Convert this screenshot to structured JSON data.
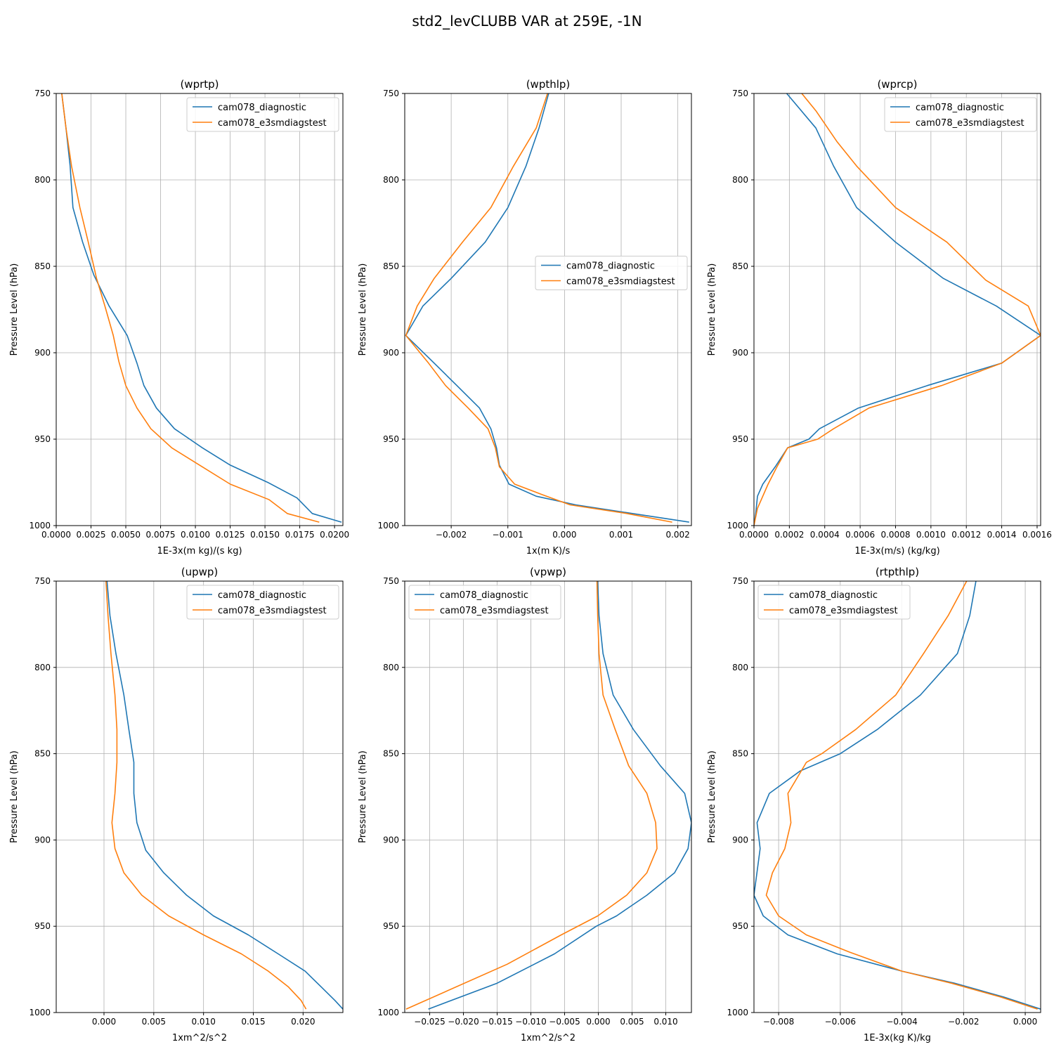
{
  "figure": {
    "title": "std2_levCLUBB VAR at 259E, -1N"
  },
  "colors": {
    "diagnostic": "#1f77b4",
    "e3smdiagstest": "#ff7f0e",
    "grid": "#b0b0b0"
  },
  "chart_data": [
    {
      "type": "line",
      "title": "(wprtp)",
      "xlabel": "1E-3x(m kg)/(s kg)",
      "ylabel": "Pressure Level (hPa)",
      "xlim": [
        0,
        0.0206
      ],
      "ylim": [
        1000,
        750
      ],
      "xticks": [
        0,
        0.0025,
        0.005,
        0.0075,
        0.01,
        0.0125,
        0.015,
        0.0175,
        0.02
      ],
      "xtick_labels": [
        "0.0000",
        "0.0025",
        "0.0050",
        "0.0075",
        "0.0100",
        "0.0125",
        "0.0150",
        "0.0175",
        "0.0200"
      ],
      "yticks": [
        750,
        800,
        850,
        900,
        950,
        1000
      ],
      "ytick_labels": [
        "750",
        "800",
        "850",
        "900",
        "950",
        "1000"
      ],
      "legend": "upper-right",
      "series": [
        {
          "name": "cam078_diagnostic",
          "color": "#1f77b4",
          "x": [
            0.0004,
            0.0007,
            0.001,
            0.0012,
            0.0019,
            0.0027,
            0.0038,
            0.0051,
            0.0058,
            0.0063,
            0.0072,
            0.0085,
            0.0105,
            0.0125,
            0.0152,
            0.0173,
            0.0184,
            0.0205
          ],
          "y": [
            750,
            770,
            792,
            816,
            836,
            855,
            873,
            890,
            906,
            919,
            932,
            944,
            955,
            965,
            975,
            984,
            993,
            998
          ]
        },
        {
          "name": "cam078_e3smdiagstest",
          "color": "#ff7f0e",
          "x": [
            0.0004,
            0.0007,
            0.0011,
            0.0017,
            0.0023,
            0.0029,
            0.0035,
            0.0041,
            0.0045,
            0.005,
            0.0058,
            0.0068,
            0.0083,
            0.0105,
            0.0125,
            0.0153,
            0.0166,
            0.0189
          ],
          "y": [
            750,
            770,
            792,
            816,
            836,
            857,
            873,
            890,
            905,
            919,
            932,
            944,
            955,
            966,
            976,
            985,
            993,
            998
          ]
        }
      ]
    },
    {
      "type": "line",
      "title": "(wpthlp)",
      "xlabel": "1x(m K)/s",
      "ylabel": "Pressure Level (hPa)",
      "xlim": [
        -0.00282,
        0.00224
      ],
      "ylim": [
        1000,
        750
      ],
      "xticks": [
        -0.002,
        -0.001,
        0,
        0.001,
        0.002
      ],
      "xtick_labels": [
        "−0.002",
        "−0.001",
        "0.000",
        "0.001",
        "0.002"
      ],
      "yticks": [
        750,
        800,
        850,
        900,
        950,
        1000
      ],
      "ytick_labels": [
        "750",
        "800",
        "850",
        "900",
        "950",
        "1000"
      ],
      "legend": "center-right",
      "series": [
        {
          "name": "cam078_diagnostic",
          "color": "#1f77b4",
          "x": [
            -0.00028,
            -0.00045,
            -0.00068,
            -0.001,
            -0.0014,
            -0.002,
            -0.0025,
            -0.0028,
            -0.0023,
            -0.0019,
            -0.0015,
            -0.0013,
            -0.0012,
            -0.00115,
            -0.00098,
            -0.0005,
            0.0002,
            0.0012,
            0.0022
          ],
          "y": [
            750,
            770,
            792,
            816,
            836,
            857,
            873,
            890,
            906,
            919,
            932,
            944,
            955,
            965,
            976,
            983,
            988,
            993,
            998
          ]
        },
        {
          "name": "cam078_e3smdiagstest",
          "color": "#ff7f0e",
          "x": [
            -0.0003,
            -0.0005,
            -0.0009,
            -0.0013,
            -0.0018,
            -0.0023,
            -0.0026,
            -0.0028,
            -0.0024,
            -0.0021,
            -0.0017,
            -0.00135,
            -0.00122,
            -0.00115,
            -0.00088,
            -0.0004,
            0.0001,
            0.0011,
            0.0019
          ],
          "y": [
            750,
            770,
            792,
            816,
            836,
            857,
            873,
            890,
            906,
            919,
            932,
            944,
            955,
            966,
            976,
            982,
            988,
            993,
            998
          ]
        }
      ]
    },
    {
      "type": "line",
      "title": "(wprcp)",
      "xlabel": "1E-3x(m/s) (kg/kg)",
      "ylabel": "Pressure Level (hPa)",
      "xlim": [
        0,
        0.00162
      ],
      "ylim": [
        1000,
        750
      ],
      "xticks": [
        0,
        0.0002,
        0.0004,
        0.0006,
        0.0008,
        0.001,
        0.0012,
        0.0014,
        0.0016
      ],
      "xtick_labels": [
        "0.0000",
        "0.0002",
        "0.0004",
        "0.0006",
        "0.0008",
        "0.0010",
        "0.0012",
        "0.0014",
        "0.0016"
      ],
      "yticks": [
        750,
        800,
        850,
        900,
        950,
        1000
      ],
      "ytick_labels": [
        "750",
        "800",
        "850",
        "900",
        "950",
        "1000"
      ],
      "legend": "upper-right",
      "series": [
        {
          "name": "cam078_diagnostic",
          "color": "#1f77b4",
          "x": [
            0.000185,
            0.00035,
            0.00045,
            0.00058,
            0.0008,
            0.00107,
            0.00137,
            0.00162,
            0.0014,
            0.00098,
            0.00059,
            0.00037,
            0.00031,
            0.00019,
            0.00012,
            5e-05,
            2e-05,
            1e-05,
            0
          ],
          "y": [
            750,
            770,
            792,
            816,
            836,
            857,
            873,
            890,
            906,
            919,
            932,
            944,
            950,
            955,
            966,
            976,
            983,
            993,
            1000
          ]
        },
        {
          "name": "cam078_e3smdiagstest",
          "color": "#ff7f0e",
          "x": [
            0.00027,
            0.00035,
            0.00047,
            0.00058,
            0.0008,
            0.00109,
            0.00131,
            0.00155,
            0.00162,
            0.0014,
            0.00106,
            0.00065,
            0.00045,
            0.00036,
            0.00019,
            0.00013,
            8e-05,
            2e-05,
            0
          ],
          "y": [
            750,
            760,
            778,
            792,
            816,
            836,
            858,
            873,
            890,
            906,
            919,
            932,
            944,
            950,
            955,
            966,
            976,
            990,
            1000
          ]
        }
      ]
    },
    {
      "type": "line",
      "title": "(upwp)",
      "xlabel": "1xm^2/s^2",
      "ylabel": "Pressure Level (hPa)",
      "xlim": [
        -0.0048,
        0.024
      ],
      "ylim": [
        1000,
        750
      ],
      "xticks": [
        0,
        0.005,
        0.01,
        0.015,
        0.02
      ],
      "xtick_labels": [
        "0.000",
        "0.005",
        "0.010",
        "0.015",
        "0.020"
      ],
      "yticks": [
        750,
        800,
        850,
        900,
        950,
        1000
      ],
      "ytick_labels": [
        "750",
        "800",
        "850",
        "900",
        "950",
        "1000"
      ],
      "legend": "upper-right",
      "series": [
        {
          "name": "cam078_diagnostic",
          "color": "#1f77b4",
          "x": [
            0.0003,
            0.0006,
            0.0012,
            0.002,
            0.0025,
            0.003,
            0.003,
            0.0033,
            0.0042,
            0.006,
            0.0083,
            0.011,
            0.0145,
            0.0175,
            0.0202,
            0.0218,
            0.0232,
            0.024
          ],
          "y": [
            750,
            770,
            792,
            816,
            836,
            855,
            873,
            890,
            906,
            919,
            932,
            944,
            955,
            966,
            976,
            985,
            993,
            998
          ]
        },
        {
          "name": "cam078_e3smdiagstest",
          "color": "#ff7f0e",
          "x": [
            0.0002,
            0.0004,
            0.0007,
            0.0011,
            0.0013,
            0.0013,
            0.0011,
            0.0008,
            0.0011,
            0.002,
            0.0038,
            0.0065,
            0.01,
            0.0138,
            0.0165,
            0.0185,
            0.0198,
            0.0203
          ],
          "y": [
            750,
            770,
            792,
            816,
            836,
            855,
            873,
            890,
            905,
            919,
            932,
            944,
            955,
            966,
            976,
            985,
            993,
            998
          ]
        }
      ]
    },
    {
      "type": "line",
      "title": "(vpwp)",
      "xlabel": "1xm^2/s^2",
      "ylabel": "Pressure Level (hPa)",
      "xlim": [
        -0.0287,
        0.0138
      ],
      "ylim": [
        1000,
        750
      ],
      "xticks": [
        -0.025,
        -0.02,
        -0.015,
        -0.01,
        -0.005,
        0,
        0.005,
        0.01
      ],
      "xtick_labels": [
        "−0.025",
        "−0.020",
        "−0.015",
        "−0.010",
        "−0.005",
        "0.000",
        "0.005",
        "0.010"
      ],
      "yticks": [
        750,
        800,
        850,
        900,
        950,
        1000
      ],
      "ytick_labels": [
        "750",
        "800",
        "850",
        "900",
        "950",
        "1000"
      ],
      "legend": "upper-left",
      "series": [
        {
          "name": "cam078_diagnostic",
          "color": "#1f77b4",
          "x": [
            -0.0001,
            0.0001,
            0.0007,
            0.0022,
            0.0052,
            0.0092,
            0.0128,
            0.0138,
            0.0133,
            0.0113,
            0.0072,
            0.0027,
            -0.0003,
            -0.0065,
            -0.015,
            -0.0252
          ],
          "y": [
            750,
            770,
            792,
            816,
            836,
            857,
            873,
            890,
            905,
            919,
            932,
            944,
            950,
            966,
            983,
            998
          ]
        },
        {
          "name": "cam078_e3smdiagstest",
          "color": "#ff7f0e",
          "x": [
            -0.0002,
            -0.0001,
            0.0001,
            0.0007,
            0.0025,
            0.0045,
            0.0072,
            0.0085,
            0.0087,
            0.0072,
            0.0042,
            -0.0001,
            -0.0055,
            -0.0135,
            -0.0285
          ],
          "y": [
            750,
            770,
            792,
            816,
            836,
            857,
            873,
            890,
            905,
            919,
            932,
            944,
            955,
            972,
            998
          ]
        }
      ]
    },
    {
      "type": "line",
      "title": "(rtpthlp)",
      "xlabel": "1E-3x(kg K)/kg",
      "ylabel": "Pressure Level (hPa)",
      "xlim": [
        -0.0088,
        0.0005
      ],
      "ylim": [
        1000,
        750
      ],
      "xticks": [
        -0.008,
        -0.006,
        -0.004,
        -0.002,
        0
      ],
      "xtick_labels": [
        "−0.008",
        "−0.006",
        "−0.004",
        "−0.002",
        "0.000"
      ],
      "yticks": [
        750,
        800,
        850,
        900,
        950,
        1000
      ],
      "ytick_labels": [
        "750",
        "800",
        "850",
        "900",
        "950",
        "1000"
      ],
      "legend": "upper-left",
      "series": [
        {
          "name": "cam078_diagnostic",
          "color": "#1f77b4",
          "x": [
            -0.0016,
            -0.0018,
            -0.0022,
            -0.0034,
            -0.0048,
            -0.006,
            -0.0073,
            -0.0083,
            -0.0087,
            -0.0086,
            -0.0088,
            -0.0085,
            -0.0077,
            -0.0061,
            -0.004,
            -0.0023,
            -0.0013,
            -0.0007,
            0.0005
          ],
          "y": [
            750,
            770,
            792,
            816,
            836,
            850,
            860,
            873,
            890,
            905,
            932,
            944,
            955,
            966,
            976,
            983,
            988,
            991,
            998
          ]
        },
        {
          "name": "cam078_e3smdiagstest",
          "color": "#ff7f0e",
          "x": [
            -0.0019,
            -0.0022,
            -0.0025,
            -0.0033,
            -0.0042,
            -0.0055,
            -0.0066,
            -0.0071,
            -0.0077,
            -0.0076,
            -0.0078,
            -0.0082,
            -0.0084,
            -0.008,
            -0.0071,
            -0.0057,
            -0.004,
            -0.0024,
            -0.0014,
            -0.0008,
            0.0004
          ],
          "y": [
            750,
            760,
            770,
            792,
            816,
            836,
            850,
            855,
            873,
            890,
            905,
            919,
            932,
            944,
            955,
            965,
            976,
            983,
            988,
            991,
            998
          ]
        }
      ]
    }
  ]
}
